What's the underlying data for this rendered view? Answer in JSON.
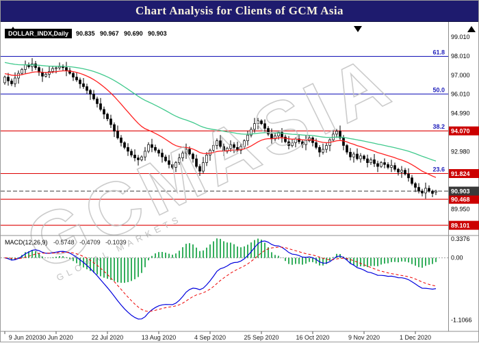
{
  "title_bar": {
    "title": "Chart Analysis for Clients of GCM Asia"
  },
  "watermark": {
    "text": "GCMASIA",
    "subtext": "GLOBAL MARKETS"
  },
  "colors": {
    "title_bg": "#1e1b6e",
    "title_fg": "#f6f0dc",
    "bull": "#ffffff",
    "bear": "#000000",
    "red_line": "#dd0000",
    "blue_line": "#2121bb",
    "badge_red": "#cc0000",
    "badge_dark": "#3a3a3a",
    "macd_line": "#0000dd",
    "signal_line": "#ee0000",
    "histogram": "#009933",
    "watermark": "#bfbfbf",
    "axis_text": "#000000"
  },
  "chart_data": {
    "type": "candlestick",
    "symbol_label": "DOLLAR_INDX,Daily",
    "ohlc_text": "90.835 90.967 90.690 90.903",
    "last_ohlc": {
      "open": 90.835,
      "high": 90.967,
      "low": 90.69,
      "close": 90.903
    },
    "ylim": [
      88.6,
      99.3
    ],
    "price_axis_ticks": [
      "99.010",
      "98.010",
      "97.000",
      "96.010",
      "94.990",
      "92.980",
      "89.950"
    ],
    "x_labels": [
      "9 Jun 2020",
      "30 Jun 2020",
      "22 Jul 2020",
      "13 Aug 2020",
      "4 Sep 2020",
      "25 Sep 2020",
      "16 Oct 2020",
      "9 Nov 2020",
      "1 Dec 2020"
    ],
    "x_label_interval": 15,
    "closes": [
      96.9,
      96.7,
      96.55,
      96.85,
      97.1,
      97.3,
      97.55,
      97.45,
      97.6,
      97.4,
      97.15,
      96.95,
      97.05,
      97.2,
      97.35,
      97.39,
      97.45,
      97.4,
      97.25,
      97.1,
      96.9,
      96.75,
      96.55,
      96.4,
      96.2,
      96.0,
      95.75,
      95.5,
      95.2,
      94.95,
      94.7,
      94.4,
      94.05,
      93.7,
      93.45,
      93.2,
      93.0,
      92.8,
      92.65,
      92.55,
      92.7,
      93.0,
      93.35,
      93.2,
      93.05,
      92.9,
      92.7,
      92.5,
      92.3,
      92.15,
      92.4,
      92.65,
      92.9,
      93.1,
      92.85,
      92.6,
      92.2,
      91.95,
      92.4,
      92.8,
      93.05,
      93.3,
      93.55,
      93.25,
      93.0,
      93.15,
      93.35,
      93.2,
      93.05,
      93.25,
      93.55,
      93.85,
      94.15,
      94.45,
      94.6,
      94.45,
      94.2,
      93.9,
      93.65,
      93.8,
      94.0,
      93.75,
      93.5,
      93.3,
      93.45,
      93.65,
      93.5,
      93.35,
      93.55,
      93.7,
      93.45,
      93.2,
      92.95,
      93.1,
      93.3,
      93.6,
      93.9,
      94.05,
      93.7,
      93.3,
      92.95,
      92.7,
      92.85,
      92.6,
      92.75,
      92.6,
      92.4,
      92.55,
      92.35,
      92.2,
      92.4,
      92.3,
      92.15,
      92.25,
      92.05,
      91.9,
      92.0,
      91.8,
      91.6,
      91.3,
      91.1,
      90.9,
      90.8,
      91.05,
      90.9,
      90.78,
      90.9
    ],
    "moving_averages": [
      {
        "name": "ma-fast-red",
        "period": 21,
        "start": 97.1,
        "color": "#ff2020"
      },
      {
        "name": "ma-slow-green",
        "period": 55,
        "start": 97.7,
        "color": "#3fc98c"
      }
    ],
    "levels": [
      {
        "fib_label": "61.8",
        "price": 97.99,
        "line_color": "#2121bb",
        "badge": null
      },
      {
        "fib_label": "50.0",
        "price": 96.01,
        "line_color": "#2121bb",
        "badge": null
      },
      {
        "fib_label": "38.2",
        "price": 94.07,
        "line_color": "#dd0000",
        "badge": "94.070"
      },
      {
        "fib_label": "23.6",
        "price": 91.824,
        "line_color": "#dd0000",
        "badge": "91.824"
      },
      {
        "fib_label": null,
        "price": 90.468,
        "line_color": "#dd0000",
        "badge": "90.468"
      },
      {
        "fib_label": null,
        "price": 89.101,
        "line_color": "#dd0000",
        "badge": "89.101"
      }
    ],
    "current_price": {
      "price": 90.903,
      "badge": "90.903"
    },
    "macd": {
      "label": "MACD(12,26,9)",
      "values_text": "-0.5748 -0.4709 -0.1039",
      "current": {
        "macd": -0.5748,
        "signal": -0.4709,
        "histogram": -0.1039
      },
      "ylim": [
        -1.15,
        0.36
      ],
      "axis_ticks": [
        "0.3376",
        "0.00",
        "-1.1066"
      ]
    }
  }
}
